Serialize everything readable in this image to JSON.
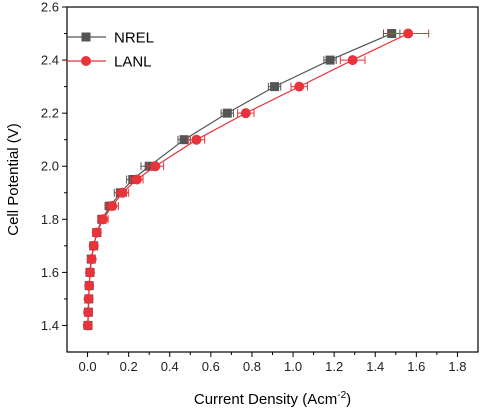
{
  "chart_data": {
    "type": "line",
    "xlabel": "Current Density (Acm",
    "xlabel_superscript": "-2",
    "xlabel_suffix": ")",
    "ylabel": "Cell Potential (V)",
    "xlim": [
      -0.1,
      1.9
    ],
    "ylim": [
      1.3,
      2.6
    ],
    "x_ticks": [
      "0.0",
      "0.2",
      "0.4",
      "0.6",
      "0.8",
      "1.0",
      "1.2",
      "1.4",
      "1.6",
      "1.8"
    ],
    "y_ticks": [
      "1.4",
      "1.6",
      "1.8",
      "2.0",
      "2.2",
      "2.4",
      "2.6"
    ],
    "legend_position": "top-left",
    "series": [
      {
        "name": "NREL",
        "color": "#555555",
        "marker": "square",
        "points": [
          {
            "x": 0.002,
            "y": 1.4,
            "err": 0.001
          },
          {
            "x": 0.004,
            "y": 1.45,
            "err": 0.002
          },
          {
            "x": 0.006,
            "y": 1.5,
            "err": 0.003
          },
          {
            "x": 0.008,
            "y": 1.55,
            "err": 0.004
          },
          {
            "x": 0.012,
            "y": 1.6,
            "err": 0.005
          },
          {
            "x": 0.018,
            "y": 1.65,
            "err": 0.007
          },
          {
            "x": 0.03,
            "y": 1.7,
            "err": 0.01
          },
          {
            "x": 0.045,
            "y": 1.75,
            "err": 0.015
          },
          {
            "x": 0.07,
            "y": 1.8,
            "err": 0.02
          },
          {
            "x": 0.11,
            "y": 1.85,
            "err": 0.025
          },
          {
            "x": 0.16,
            "y": 1.9,
            "err": 0.03
          },
          {
            "x": 0.22,
            "y": 1.95,
            "err": 0.03
          },
          {
            "x": 0.3,
            "y": 2.0,
            "err": 0.04
          },
          {
            "x": 0.47,
            "y": 2.1,
            "err": 0.03
          },
          {
            "x": 0.68,
            "y": 2.2,
            "err": 0.03
          },
          {
            "x": 0.91,
            "y": 2.3,
            "err": 0.03
          },
          {
            "x": 1.18,
            "y": 2.4,
            "err": 0.03
          },
          {
            "x": 1.48,
            "y": 2.5,
            "err": 0.04
          }
        ]
      },
      {
        "name": "LANL",
        "color": "#e8333a",
        "marker": "circle",
        "points": [
          {
            "x": 0.001,
            "y": 1.4,
            "err": 0.001
          },
          {
            "x": 0.003,
            "y": 1.45,
            "err": 0.002
          },
          {
            "x": 0.005,
            "y": 1.5,
            "err": 0.003
          },
          {
            "x": 0.008,
            "y": 1.55,
            "err": 0.004
          },
          {
            "x": 0.012,
            "y": 1.6,
            "err": 0.005
          },
          {
            "x": 0.02,
            "y": 1.65,
            "err": 0.008
          },
          {
            "x": 0.03,
            "y": 1.7,
            "err": 0.01
          },
          {
            "x": 0.045,
            "y": 1.75,
            "err": 0.02
          },
          {
            "x": 0.075,
            "y": 1.8,
            "err": 0.025
          },
          {
            "x": 0.12,
            "y": 1.85,
            "err": 0.03
          },
          {
            "x": 0.17,
            "y": 1.9,
            "err": 0.03
          },
          {
            "x": 0.24,
            "y": 1.95,
            "err": 0.03
          },
          {
            "x": 0.33,
            "y": 2.0,
            "err": 0.04
          },
          {
            "x": 0.53,
            "y": 2.1,
            "err": 0.04
          },
          {
            "x": 0.77,
            "y": 2.2,
            "err": 0.04
          },
          {
            "x": 1.03,
            "y": 2.3,
            "err": 0.04
          },
          {
            "x": 1.29,
            "y": 2.4,
            "err": 0.06
          },
          {
            "x": 1.56,
            "y": 2.5,
            "err": 0.1
          }
        ]
      }
    ]
  }
}
